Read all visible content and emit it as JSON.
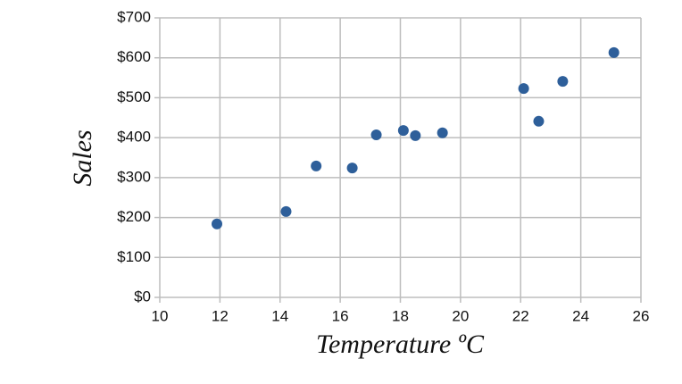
{
  "chart_data": {
    "type": "scatter",
    "x_label": "Temperature ºC",
    "y_label": "Sales",
    "x": [
      11.9,
      14.2,
      15.2,
      16.4,
      17.2,
      18.1,
      18.5,
      19.4,
      22.1,
      22.6,
      23.4,
      25.1
    ],
    "values": [
      184,
      215,
      329,
      324,
      407,
      418,
      405,
      412,
      523,
      441,
      541,
      613
    ],
    "color": "#2e5f9a",
    "xlim": [
      10,
      26
    ],
    "xticks": [
      10,
      12,
      14,
      16,
      18,
      20,
      22,
      24,
      26
    ],
    "ylim": [
      0,
      700
    ],
    "yticks": [
      {
        "value": 0,
        "label": "$0"
      },
      {
        "value": 100,
        "label": "$100"
      },
      {
        "value": 200,
        "label": "$200"
      },
      {
        "value": 300,
        "label": "$300"
      },
      {
        "value": 400,
        "label": "$400"
      },
      {
        "value": 500,
        "label": "$500"
      },
      {
        "value": 600,
        "label": "$600"
      },
      {
        "value": 700,
        "label": "$700"
      }
    ],
    "grid": true
  }
}
